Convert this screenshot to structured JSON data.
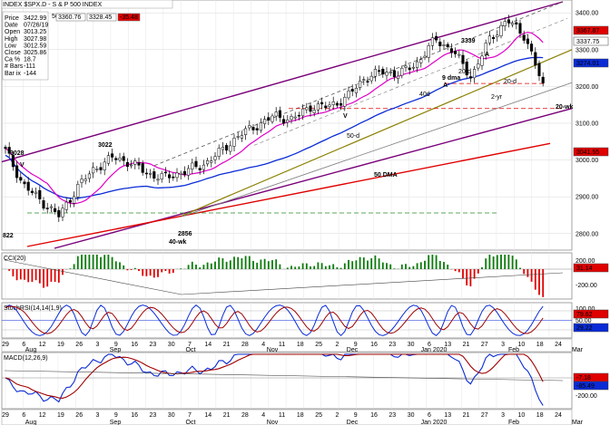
{
  "header": {
    "symbol": "INDEX $SPX.D",
    "name": "S & P 500 INDEX",
    "bar_label": "50",
    "high_box": "3360.76",
    "low_box": "3328.45",
    "change_box": "-35.48"
  },
  "info": [
    {
      "k": "Price",
      "v": "3422.99"
    },
    {
      "k": "Date",
      "v": "07/26/19"
    },
    {
      "k": "Open",
      "v": "3013.25"
    },
    {
      "k": "High",
      "v": "3027.98"
    },
    {
      "k": "Low",
      "v": "3012.59"
    },
    {
      "k": "Close",
      "v": "3025.86"
    },
    {
      "k": "Ca %",
      "v": "18.7"
    },
    {
      "k": "# Bars",
      "v": "-111"
    },
    {
      "k": "Bar ix",
      "v": "-144"
    }
  ],
  "colors": {
    "purple": "#7a007a",
    "red": "#e00000",
    "blue": "#0a2bd6",
    "magenta": "#e000c8",
    "olive": "#8a8000",
    "green": "#0a7a0a",
    "darkred": "#a00000",
    "gray": "#808080"
  },
  "main_panel": {
    "y_ticks": [
      "3400.00",
      "3300.00",
      "3200.00",
      "3100.00",
      "3000.00",
      "2900.00",
      "2800.00"
    ],
    "price_boxes": [
      {
        "label": "3367.87",
        "color": "#e00000"
      },
      {
        "label": "3337.75",
        "color": "#ffffff"
      },
      {
        "label": "3274.01",
        "color": "#0a2bd6"
      },
      {
        "label": "3041.55",
        "color": "#e00000"
      }
    ],
    "annotations": {
      "a3028": "3028",
      "a3022": "3022",
      "a822": "822",
      "a2856": "2856",
      "a40wk": "40-wk",
      "a3339": "3339",
      "a9dma": "9 dma",
      "a20d_a": "20-d",
      "a20d_b": "20-d",
      "a2yr": "2-yr",
      "a20wk": "20-wk",
      "a40d": "40d",
      "a50d": "50-d",
      "a50dma": "50 DMA",
      "a_red_a": "A",
      "a_red_a2": "A",
      "a_v1": "V",
      "a_v2": "V"
    }
  },
  "cci_panel": {
    "title": "CCI(20)",
    "y_ticks": [
      "200.00",
      "-200.00"
    ],
    "value_box": "31.14"
  },
  "stoch_panel": {
    "title": "StochRSI(14,14(1,9)",
    "y_ticks": [
      "100.00",
      "50.00"
    ],
    "value_boxes": [
      "79.62",
      "29.22"
    ]
  },
  "macd_panel": {
    "title": "MACD(12,26,9)",
    "y_ticks": [
      "-200.00"
    ],
    "value_boxes": [
      "-7.18",
      "-85.49"
    ]
  },
  "x_axis": {
    "days": [
      "29",
      "6",
      "12",
      "19",
      "26",
      "3",
      "9",
      "16",
      "23",
      "30",
      "7",
      "14",
      "21",
      "28",
      "4",
      "11",
      "18",
      "25",
      "2",
      "9",
      "16",
      "23",
      "30",
      "6",
      "13",
      "21",
      "27",
      "3",
      "10",
      "18",
      "24",
      "2"
    ],
    "months": [
      "Aug",
      "Sep",
      "Oct",
      "Nov",
      "Dec",
      "Jan 2020",
      "Feb",
      "Mar"
    ]
  },
  "chart_data": {
    "type": "candlestick",
    "title": "INDEX $SPX.D - S & P 500 INDEX",
    "ylim": [
      2760,
      3430
    ],
    "x": [
      "2019-07-29",
      "2019-08-05",
      "2019-08-12",
      "2019-08-19",
      "2019-08-26",
      "2019-09-02",
      "2019-09-09",
      "2019-09-16",
      "2019-09-23",
      "2019-09-30",
      "2019-10-07",
      "2019-10-14",
      "2019-10-21",
      "2019-10-28",
      "2019-11-04",
      "2019-11-11",
      "2019-11-18",
      "2019-11-25",
      "2019-12-02",
      "2019-12-09",
      "2019-12-16",
      "2019-12-23",
      "2019-12-30",
      "2020-01-06",
      "2020-01-13",
      "2020-01-21",
      "2020-01-27",
      "2020-02-03",
      "2020-02-10",
      "2020-02-18",
      "2020-02-24"
    ],
    "series": [
      {
        "name": "close",
        "values": [
          3025,
          2932,
          2888,
          2847,
          2926,
          2978,
          3007,
          2992,
          2961,
          2952,
          2970,
          2986,
          3022,
          3066,
          3093,
          3120,
          3110,
          3145,
          3145,
          3168,
          3221,
          3240,
          3234,
          3265,
          3329,
          3295,
          3225,
          3327,
          3380,
          3337,
          3200
        ]
      }
    ],
    "moving_averages": [
      "9 dma",
      "20-d",
      "50 DMA",
      "40-wk",
      "20-wk",
      "2-yr"
    ],
    "indicators": [
      "CCI(20)",
      "StochRSI(14,14(1,9)",
      "MACD(12,26,9)"
    ]
  }
}
